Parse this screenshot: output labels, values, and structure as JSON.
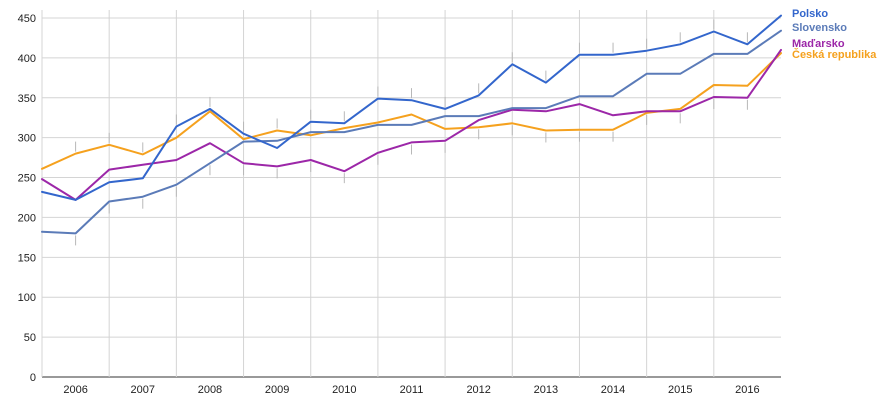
{
  "chart_data": {
    "type": "line",
    "title": "",
    "xlabel": "",
    "ylabel": "",
    "x_tick_labels": [
      "2006",
      "2007",
      "2008",
      "2009",
      "2010",
      "2011",
      "2012",
      "2013",
      "2014",
      "2015",
      "2016"
    ],
    "y_ticks": [
      0,
      50,
      100,
      150,
      200,
      250,
      300,
      350,
      400,
      450
    ],
    "ylim": [
      0,
      460
    ],
    "xlim": [
      2005.5,
      2016.5
    ],
    "grid": true,
    "legend_position": "right",
    "x": [
      2005.5,
      2006.0,
      2006.5,
      2007.0,
      2007.5,
      2008.0,
      2008.5,
      2009.0,
      2009.5,
      2010.0,
      2010.5,
      2011.0,
      2011.5,
      2012.0,
      2012.5,
      2013.0,
      2013.5,
      2014.0,
      2014.5,
      2015.0,
      2015.5,
      2016.0,
      2016.5
    ],
    "series": [
      {
        "name": "Polsko",
        "color": "#3366cc",
        "values": [
          232,
          222,
          244,
          249,
          314,
          336,
          305,
          287,
          320,
          318,
          349,
          347,
          336,
          353,
          392,
          369,
          404,
          404,
          409,
          417,
          433,
          417,
          453
        ]
      },
      {
        "name": "Slovensko",
        "color": "#5b7bb8",
        "values": [
          182,
          180,
          220,
          226,
          241,
          268,
          295,
          296,
          307,
          307,
          316,
          316,
          327,
          327,
          337,
          337,
          352,
          352,
          380,
          380,
          405,
          405,
          434
        ]
      },
      {
        "name": "Maďarsko",
        "color": "#9c27a8",
        "values": [
          248,
          222,
          260,
          266,
          272,
          293,
          268,
          264,
          272,
          258,
          281,
          294,
          296,
          322,
          335,
          333,
          342,
          328,
          333,
          333,
          351,
          350,
          410
        ]
      },
      {
        "name": "Česká republika",
        "color": "#f5a11e",
        "values": [
          261,
          280,
          291,
          279,
          300,
          333,
          298,
          309,
          303,
          312,
          319,
          329,
          311,
          313,
          318,
          309,
          310,
          310,
          331,
          336,
          366,
          365,
          406
        ]
      }
    ]
  }
}
